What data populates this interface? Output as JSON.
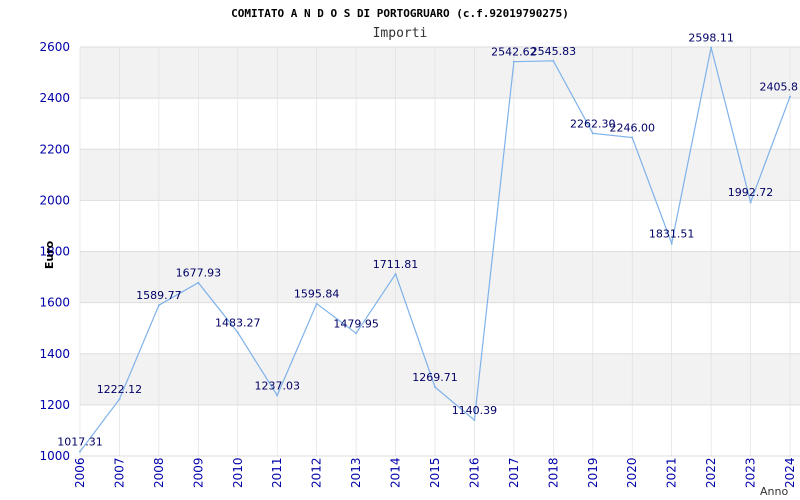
{
  "chart_data": {
    "type": "line",
    "title": "COMITATO A N D O S DI PORTOGRUARO (c.f.92019790275)",
    "subtitle": "Importi",
    "xlabel": "Anno",
    "ylabel": "Euro",
    "x": [
      "2006",
      "2007",
      "2008",
      "2009",
      "2010",
      "2011",
      "2012",
      "2013",
      "2014",
      "2015",
      "2016",
      "2017",
      "2018",
      "2019",
      "2020",
      "2021",
      "2022",
      "2023",
      "2024"
    ],
    "values": [
      1017.31,
      1222.12,
      1589.77,
      1677.93,
      1483.27,
      1237.03,
      1595.84,
      1479.95,
      1711.81,
      1269.71,
      1140.39,
      2542.62,
      2545.83,
      2262.3,
      2246.0,
      1831.51,
      2598.11,
      1992.72,
      2405.8
    ],
    "data_labels": [
      "1017.31",
      "1222.12",
      "1589.77",
      "1677.93",
      "1483.27",
      "1237.03",
      "1595.84",
      "1479.95",
      "1711.81",
      "1269.71",
      "1140.39",
      "2542.62",
      "2545.83",
      "2262.30",
      "2246.00",
      "1831.51",
      "2598.11",
      "1992.72",
      "2405.8"
    ],
    "ylim": [
      1000,
      2600
    ],
    "yticks": [
      "1000",
      "1200",
      "1400",
      "1600",
      "1800",
      "2000",
      "2200",
      "2400",
      "2600"
    ],
    "grid": true,
    "legend": "none",
    "colors": {
      "line": "#7fb2ea",
      "band": "#f2f2f2",
      "gridline": "#dddddd",
      "tick_text": "#0000aa",
      "label_text": "#000066",
      "title_text": "#000000",
      "subtitle_text": "#333333"
    }
  }
}
